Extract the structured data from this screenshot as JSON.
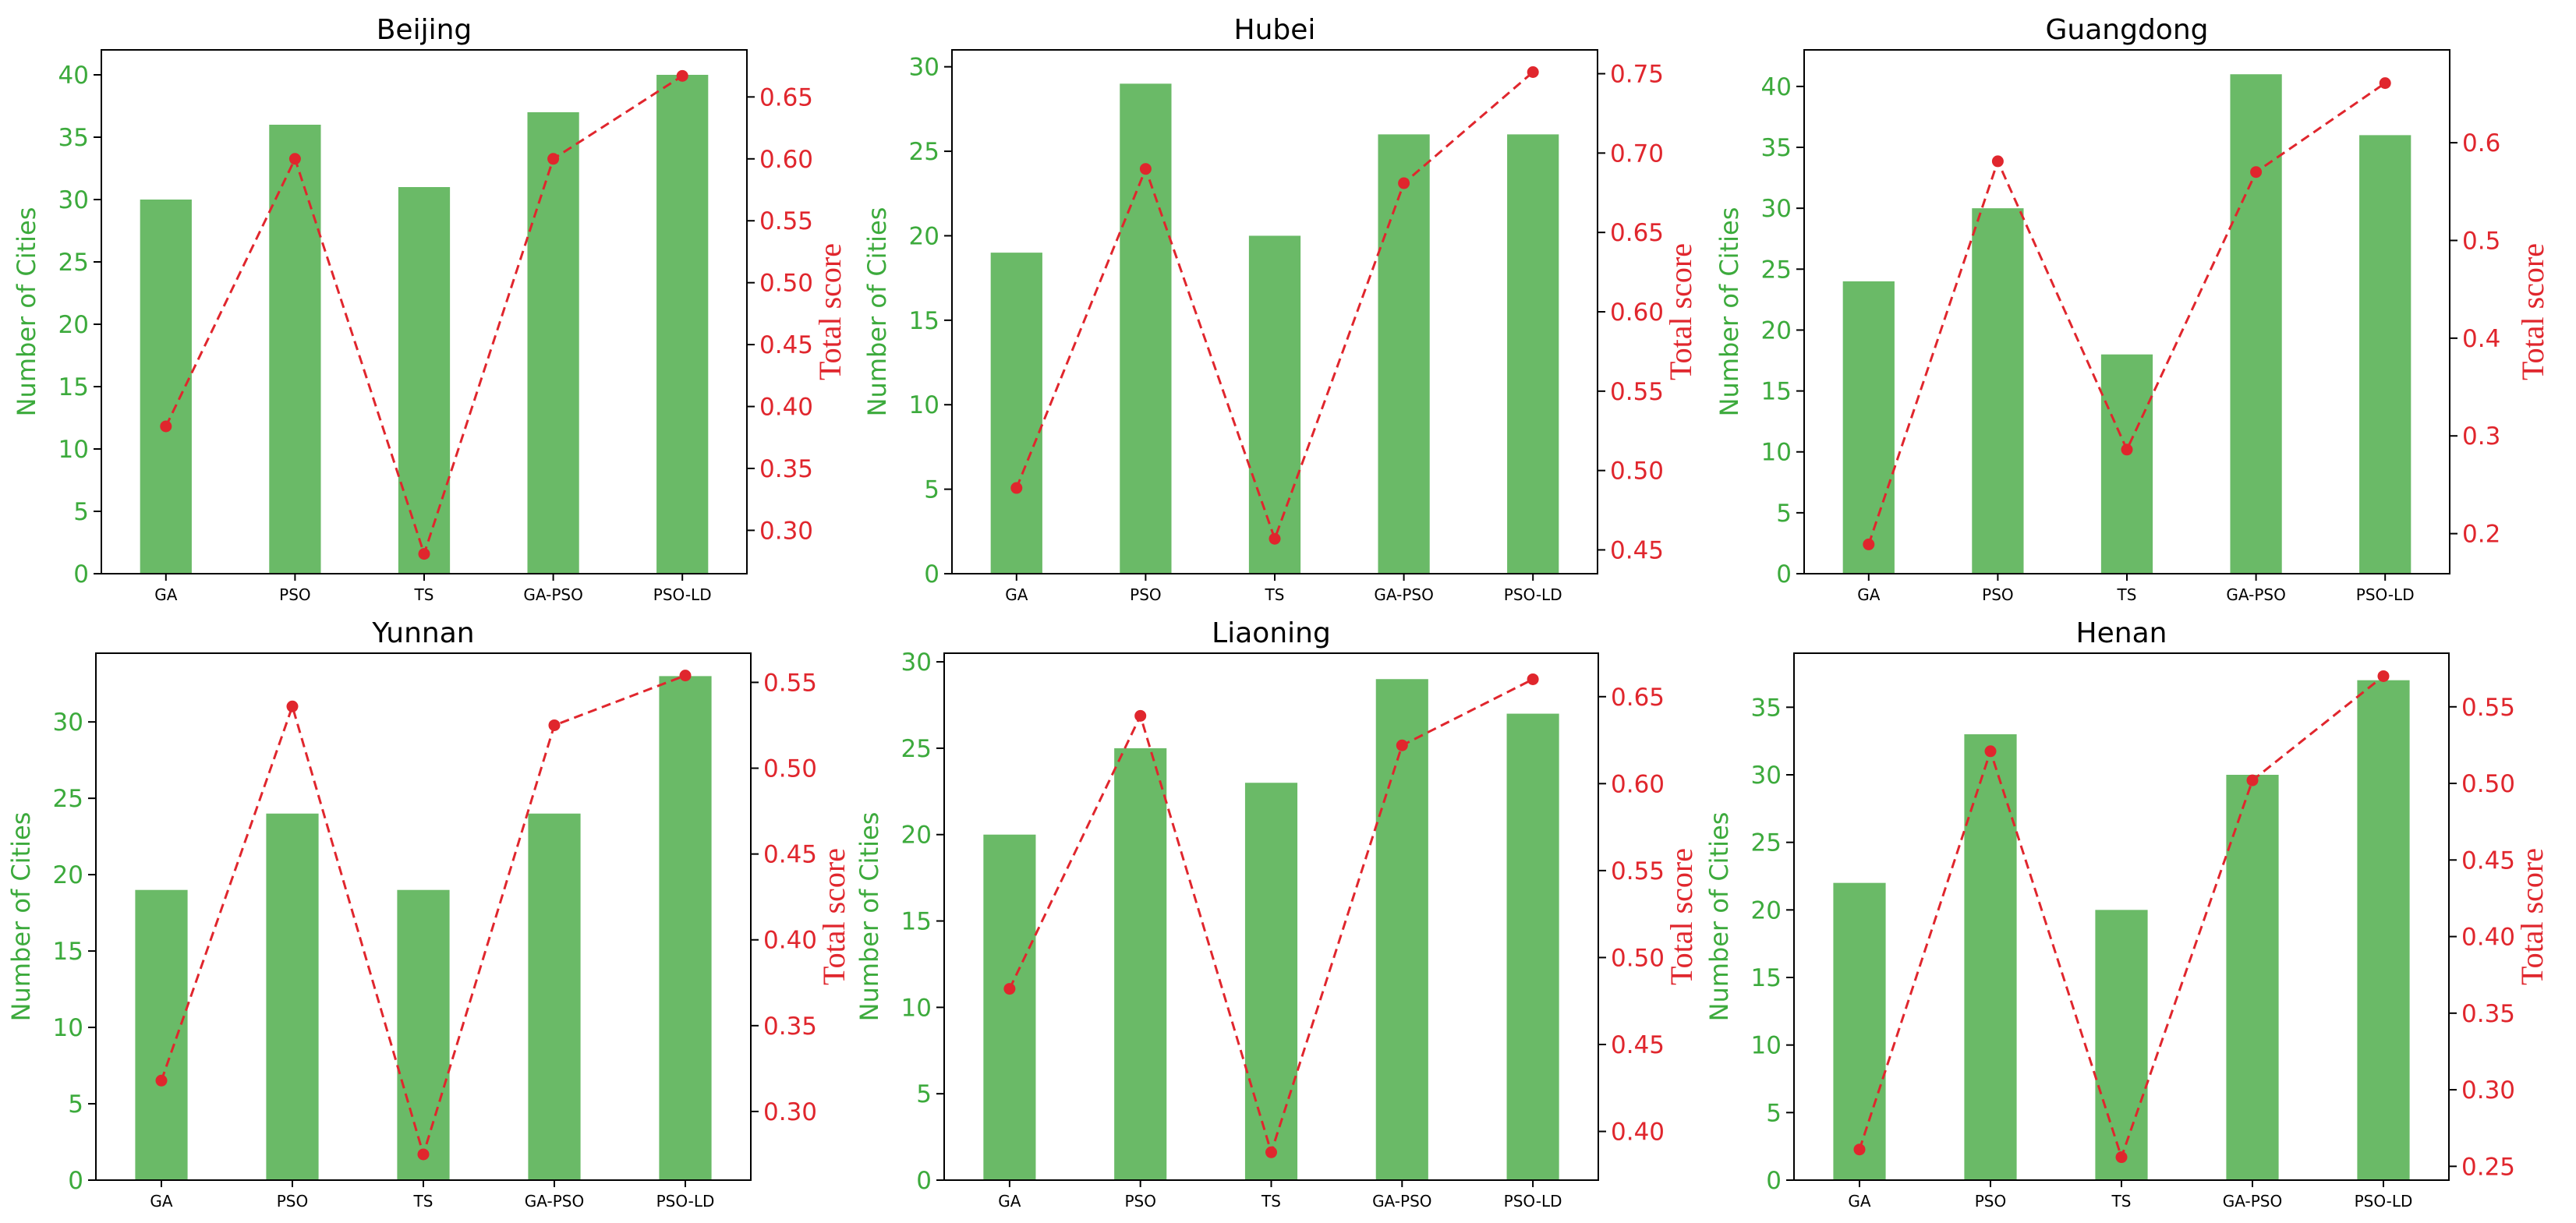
{
  "theme": {
    "bar_color": "#6aba67",
    "left_axis_color": "#3caa3c",
    "line_color": "#e0262d",
    "axis_color": "#000000"
  },
  "chart_data": [
    {
      "type": "bar",
      "title": "Beijing",
      "categories": [
        "GA",
        "PSO",
        "TS",
        "GA-PSO",
        "PSO-LD"
      ],
      "ylabel": "Number of Cities",
      "y2label": "Total score",
      "ylim": [
        0,
        42
      ],
      "yticks": [
        0,
        5,
        10,
        15,
        20,
        25,
        30,
        35,
        40
      ],
      "y2lim": [
        0.265,
        0.688
      ],
      "y2ticks": [
        "0.30",
        "0.35",
        "0.40",
        "0.45",
        "0.50",
        "0.55",
        "0.60",
        "0.65"
      ],
      "series": [
        {
          "axis": "left",
          "kind": "bar",
          "values": [
            30,
            36,
            31,
            37,
            40
          ]
        },
        {
          "axis": "right",
          "kind": "line-dashed-markers",
          "values": [
            0.384,
            0.6,
            0.281,
            0.6,
            0.667
          ]
        }
      ]
    },
    {
      "type": "bar",
      "title": "Hubei",
      "categories": [
        "GA",
        "PSO",
        "TS",
        "GA-PSO",
        "PSO-LD"
      ],
      "ylabel": "Number of Cities",
      "y2label": "Total score",
      "ylim": [
        0,
        31
      ],
      "yticks": [
        0,
        5,
        10,
        15,
        20,
        25,
        30
      ],
      "y2lim": [
        0.435,
        0.765
      ],
      "y2ticks": [
        "0.45",
        "0.50",
        "0.55",
        "0.60",
        "0.65",
        "0.70",
        "0.75"
      ],
      "series": [
        {
          "axis": "left",
          "kind": "bar",
          "values": [
            19,
            29,
            20,
            26,
            26
          ]
        },
        {
          "axis": "right",
          "kind": "line-dashed-markers",
          "values": [
            0.489,
            0.69,
            0.457,
            0.681,
            0.751
          ]
        }
      ]
    },
    {
      "type": "bar",
      "title": "Guangdong",
      "categories": [
        "GA",
        "PSO",
        "TS",
        "GA-PSO",
        "PSO-LD"
      ],
      "ylabel": "Number of Cities",
      "y2label": "Total score",
      "ylim": [
        0,
        43
      ],
      "yticks": [
        0,
        5,
        10,
        15,
        20,
        25,
        30,
        35,
        40
      ],
      "y2lim": [
        0.159,
        0.695
      ],
      "y2ticks": [
        "0.2",
        "0.3",
        "0.4",
        "0.5",
        "0.6"
      ],
      "series": [
        {
          "axis": "left",
          "kind": "bar",
          "values": [
            24,
            30,
            18,
            41,
            36
          ]
        },
        {
          "axis": "right",
          "kind": "line-dashed-markers",
          "values": [
            0.189,
            0.581,
            0.286,
            0.57,
            0.661
          ]
        }
      ]
    },
    {
      "type": "bar",
      "title": "Yunnan",
      "categories": [
        "GA",
        "PSO",
        "TS",
        "GA-PSO",
        "PSO-LD"
      ],
      "ylabel": "Number of Cities",
      "y2label": "Total score",
      "ylim": [
        0,
        34.5
      ],
      "yticks": [
        0,
        5,
        10,
        15,
        20,
        25,
        30
      ],
      "y2lim": [
        0.26,
        0.567
      ],
      "y2ticks": [
        "0.30",
        "0.35",
        "0.40",
        "0.45",
        "0.50",
        "0.55"
      ],
      "series": [
        {
          "axis": "left",
          "kind": "bar",
          "values": [
            19,
            24,
            19,
            24,
            33
          ]
        },
        {
          "axis": "right",
          "kind": "line-dashed-markers",
          "values": [
            0.318,
            0.536,
            0.275,
            0.525,
            0.554
          ]
        }
      ]
    },
    {
      "type": "bar",
      "title": "Liaoning",
      "categories": [
        "GA",
        "PSO",
        "TS",
        "GA-PSO",
        "PSO-LD"
      ],
      "ylabel": "Number of Cities",
      "y2label": "Total score",
      "ylim": [
        0,
        30.5
      ],
      "yticks": [
        0,
        5,
        10,
        15,
        20,
        25,
        30
      ],
      "y2lim": [
        0.372,
        0.675
      ],
      "y2ticks": [
        "0.40",
        "0.45",
        "0.50",
        "0.55",
        "0.60",
        "0.65"
      ],
      "series": [
        {
          "axis": "left",
          "kind": "bar",
          "values": [
            20,
            25,
            23,
            29,
            27
          ]
        },
        {
          "axis": "right",
          "kind": "line-dashed-markers",
          "values": [
            0.482,
            0.639,
            0.388,
            0.622,
            0.66
          ]
        }
      ]
    },
    {
      "type": "bar",
      "title": "Henan",
      "categories": [
        "GA",
        "PSO",
        "TS",
        "GA-PSO",
        "PSO-LD"
      ],
      "ylabel": "Number of Cities",
      "y2label": "Total score",
      "ylim": [
        0,
        39
      ],
      "yticks": [
        0,
        5,
        10,
        15,
        20,
        25,
        30,
        35
      ],
      "y2lim": [
        0.241,
        0.585
      ],
      "y2ticks": [
        "0.25",
        "0.30",
        "0.35",
        "0.40",
        "0.45",
        "0.50",
        "0.55"
      ],
      "series": [
        {
          "axis": "left",
          "kind": "bar",
          "values": [
            22,
            33,
            20,
            30,
            37
          ]
        },
        {
          "axis": "right",
          "kind": "line-dashed-markers",
          "values": [
            0.261,
            0.521,
            0.256,
            0.502,
            0.57
          ]
        }
      ]
    }
  ]
}
